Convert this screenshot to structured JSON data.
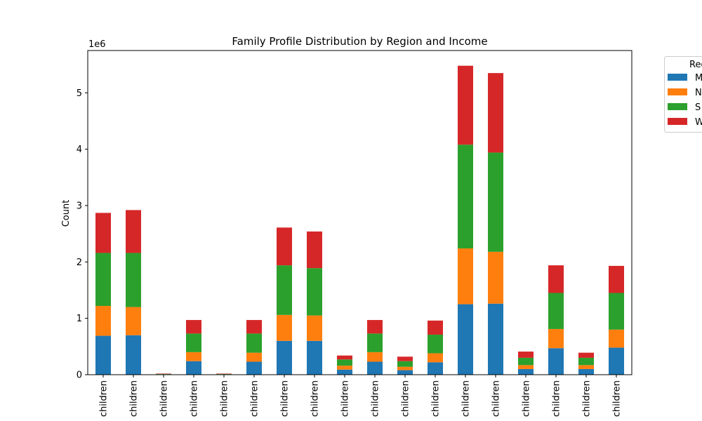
{
  "chart_data": {
    "type": "bar",
    "stacked": true,
    "title": "Family Profile Distribution by Region and Income",
    "xlabel": "",
    "ylabel": "Count",
    "y_multiplier_label": "1e6",
    "ylim": [
      0,
      5.75
    ],
    "yticks": [
      0,
      1,
      2,
      3,
      4,
      5
    ],
    "grid": false,
    "legend_title": "Reg",
    "legend_placement": "outside-top-right",
    "categories": [
      "children",
      "children",
      "children",
      "children",
      "children",
      "children",
      "children",
      "children",
      "children",
      "children",
      "children",
      "children",
      "children",
      "children",
      "children",
      "children",
      "children",
      "children"
    ],
    "series": [
      {
        "name": "M",
        "color": "#1f77b4",
        "values": [
          0.69,
          0.7,
          0.005,
          0.24,
          0.005,
          0.23,
          0.6,
          0.6,
          0.09,
          0.23,
          0.08,
          0.22,
          1.25,
          1.26,
          0.1,
          0.47,
          0.1,
          0.48
        ]
      },
      {
        "name": "N",
        "color": "#ff7f0e",
        "values": [
          0.53,
          0.5,
          0.003,
          0.16,
          0.003,
          0.16,
          0.46,
          0.45,
          0.07,
          0.17,
          0.06,
          0.16,
          0.99,
          0.92,
          0.07,
          0.34,
          0.07,
          0.32
        ]
      },
      {
        "name": "S",
        "color": "#2ca02c",
        "values": [
          0.94,
          0.96,
          0.007,
          0.33,
          0.007,
          0.34,
          0.88,
          0.84,
          0.11,
          0.33,
          0.1,
          0.33,
          1.84,
          1.76,
          0.13,
          0.64,
          0.13,
          0.65
        ]
      },
      {
        "name": "W",
        "color": "#d62728",
        "values": [
          0.71,
          0.76,
          0.005,
          0.24,
          0.005,
          0.24,
          0.67,
          0.65,
          0.07,
          0.24,
          0.08,
          0.25,
          1.4,
          1.41,
          0.11,
          0.49,
          0.09,
          0.48
        ]
      }
    ]
  }
}
